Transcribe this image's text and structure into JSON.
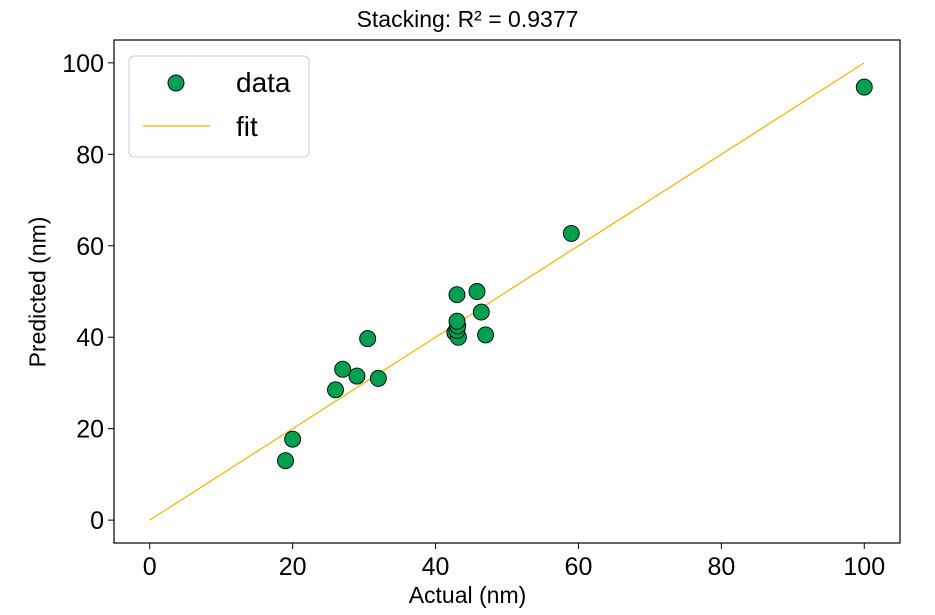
{
  "chart_data": {
    "type": "scatter",
    "title": "Stacking: R² = 0.9377",
    "xlabel": "Actual (nm)",
    "ylabel": "Predicted (nm)",
    "xlim": [
      -5,
      105
    ],
    "ylim": [
      -5,
      105
    ],
    "xticks": [
      0,
      20,
      40,
      60,
      80,
      100
    ],
    "yticks": [
      0,
      20,
      40,
      60,
      80,
      100
    ],
    "grid": false,
    "legend_position": "top-left",
    "series": [
      {
        "name": "data",
        "kind": "scatter",
        "color": "#00A050",
        "points": [
          {
            "x": 19,
            "y": 13
          },
          {
            "x": 20,
            "y": 17.7
          },
          {
            "x": 26,
            "y": 28.5
          },
          {
            "x": 27,
            "y": 33
          },
          {
            "x": 29,
            "y": 31.5
          },
          {
            "x": 30.5,
            "y": 39.7
          },
          {
            "x": 32,
            "y": 31
          },
          {
            "x": 42.7,
            "y": 41
          },
          {
            "x": 43.2,
            "y": 40
          },
          {
            "x": 43,
            "y": 41.5
          },
          {
            "x": 43.1,
            "y": 42.5
          },
          {
            "x": 43,
            "y": 43.5
          },
          {
            "x": 43,
            "y": 49.3
          },
          {
            "x": 45.8,
            "y": 50
          },
          {
            "x": 46.4,
            "y": 45.5
          },
          {
            "x": 47,
            "y": 40.5
          },
          {
            "x": 59,
            "y": 62.7
          },
          {
            "x": 100,
            "y": 94.7
          }
        ]
      },
      {
        "name": "fit",
        "kind": "line",
        "color": "#F5B800",
        "x": [
          0,
          100
        ],
        "y": [
          0,
          100
        ]
      }
    ]
  }
}
